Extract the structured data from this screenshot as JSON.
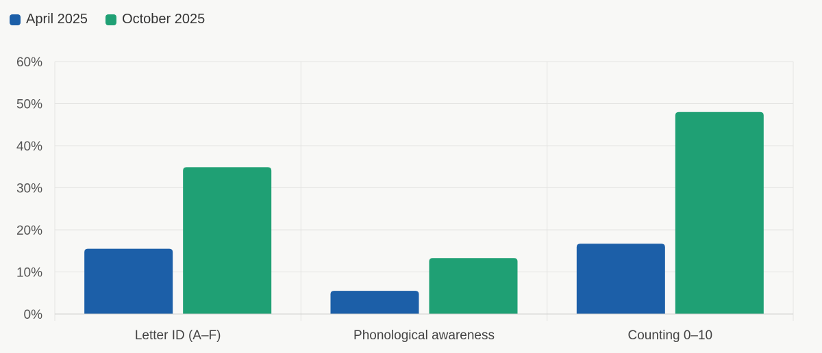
{
  "chart_data": {
    "type": "bar",
    "categories": [
      "Letter ID (A–F)",
      "Phonological awareness",
      "Counting 0–10"
    ],
    "series": [
      {
        "name": "April 2025",
        "color": "#1c5fa8",
        "values": [
          15.5,
          5.5,
          16.7
        ]
      },
      {
        "name": "October 2025",
        "color": "#1fa074",
        "values": [
          34.9,
          13.3,
          48.0
        ]
      }
    ],
    "ylim": [
      0,
      60
    ],
    "yticks": [
      0,
      10,
      20,
      30,
      40,
      50,
      60
    ],
    "ytick_labels": [
      "0%",
      "10%",
      "20%",
      "30%",
      "40%",
      "50%",
      "60%"
    ],
    "grid": true,
    "legend_position": "top-left",
    "title": "",
    "xlabel": "",
    "ylabel": ""
  }
}
